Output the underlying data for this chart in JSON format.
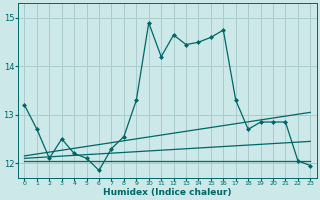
{
  "xlabel": "Humidex (Indice chaleur)",
  "background_color": "#cce8e8",
  "grid_color": "#aacccc",
  "line_color": "#006666",
  "xlim": [
    -0.5,
    23.5
  ],
  "ylim": [
    11.7,
    15.3
  ],
  "yticks": [
    12,
    13,
    14,
    15
  ],
  "xticks": [
    0,
    1,
    2,
    3,
    4,
    5,
    6,
    7,
    8,
    9,
    10,
    11,
    12,
    13,
    14,
    15,
    16,
    17,
    18,
    19,
    20,
    21,
    22,
    23
  ],
  "series": [
    {
      "x": [
        0,
        1,
        2,
        3,
        4,
        5,
        6,
        7,
        8,
        9,
        10,
        11,
        12,
        13,
        14,
        15,
        16,
        17,
        18,
        19,
        20,
        21,
        22,
        23
      ],
      "y": [
        13.2,
        12.7,
        12.1,
        12.5,
        12.2,
        12.1,
        11.85,
        12.3,
        12.55,
        13.3,
        14.9,
        14.2,
        14.65,
        14.45,
        14.5,
        14.6,
        14.75,
        13.3,
        12.7,
        12.85,
        12.85,
        12.85,
        12.05,
        11.95
      ],
      "marker": "D",
      "markersize": 2.0,
      "linewidth": 0.9
    },
    {
      "x": [
        0,
        23
      ],
      "y": [
        12.05,
        12.05
      ],
      "marker": null,
      "linewidth": 0.9
    },
    {
      "x": [
        0,
        23
      ],
      "y": [
        12.1,
        12.45
      ],
      "marker": null,
      "linewidth": 0.9
    },
    {
      "x": [
        0,
        23
      ],
      "y": [
        12.15,
        13.05
      ],
      "marker": null,
      "linewidth": 0.9
    }
  ]
}
